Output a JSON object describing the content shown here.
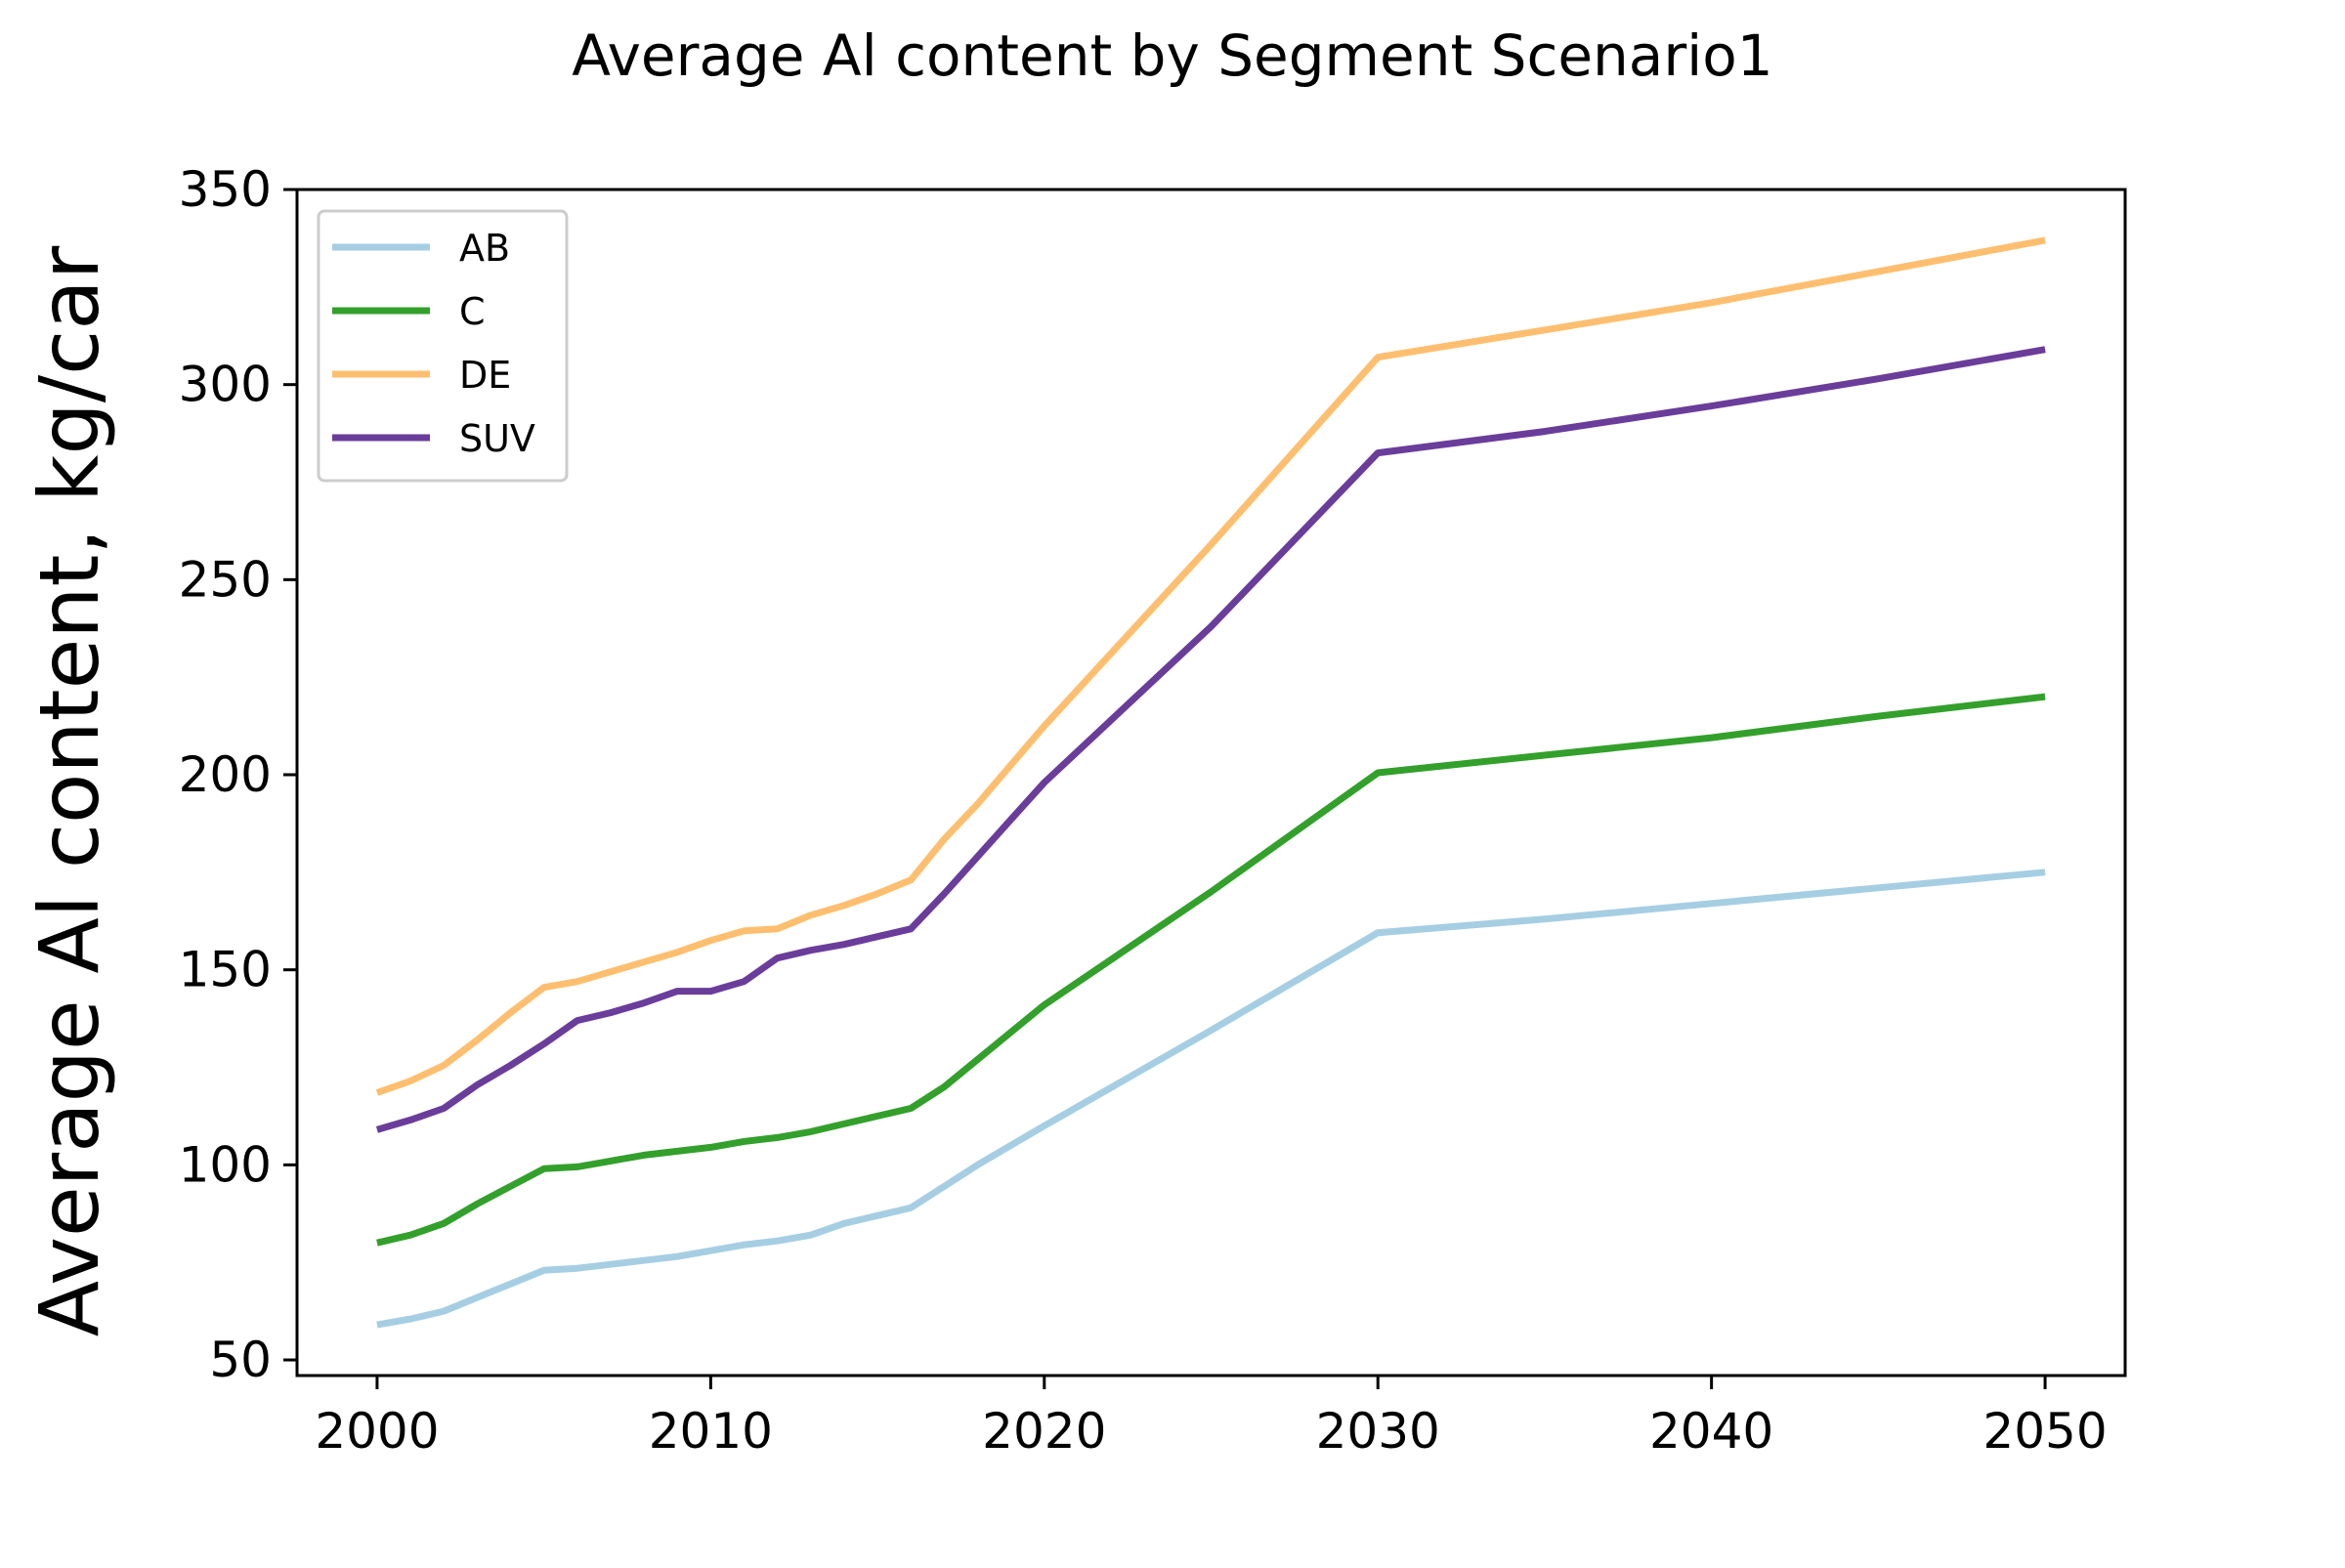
{
  "chart_data": {
    "type": "line",
    "title": "Average Al content by Segment Scenario1",
    "xlabel": "",
    "ylabel": "Average Al content, kg/car",
    "xlim": [
      1997.6,
      2052.4
    ],
    "ylim": [
      46,
      350
    ],
    "xticks": [
      2000,
      2010,
      2020,
      2030,
      2040,
      2050
    ],
    "yticks": [
      50,
      100,
      150,
      200,
      250,
      300,
      350
    ],
    "grid": false,
    "legend_position": "top-left",
    "x": [
      2000,
      2001,
      2002,
      2003,
      2004,
      2005,
      2006,
      2007,
      2008,
      2009,
      2010,
      2011,
      2012,
      2013,
      2014,
      2015,
      2016,
      2017,
      2018,
      2019,
      2020,
      2025,
      2030,
      2035,
      2040,
      2045,
      2050
    ],
    "series": [
      {
        "name": "AB",
        "color": "#a6cee3",
        "values": [
          59,
          60.5,
          62.5,
          66,
          69.5,
          73,
          73.5,
          74.5,
          75.5,
          76.5,
          78,
          79.5,
          80.5,
          82,
          85,
          87,
          89,
          94.5,
          100,
          105,
          110,
          134.5,
          159.5,
          163,
          167,
          171,
          175
        ]
      },
      {
        "name": "C",
        "color": "#33a02c",
        "values": [
          80,
          82,
          85,
          90,
          94.5,
          99,
          99.5,
          101,
          102.5,
          103.5,
          104.5,
          106,
          107,
          108.5,
          110.5,
          112.5,
          114.5,
          120,
          127,
          134,
          141,
          170,
          200.5,
          205,
          209.5,
          215,
          220
        ]
      },
      {
        "name": "DE",
        "color": "#fdbf6f",
        "values": [
          118.5,
          121.5,
          125.5,
          132,
          139,
          145.5,
          147,
          149.5,
          152,
          154.5,
          157.5,
          160,
          160.5,
          164,
          166.5,
          169.5,
          173,
          183.5,
          192.5,
          202.5,
          212.5,
          259,
          307,
          314,
          321,
          329,
          337
        ]
      },
      {
        "name": "SUV",
        "color": "#6a3d9a",
        "values": [
          109,
          111.5,
          114.5,
          120.5,
          125.5,
          131,
          137,
          139,
          141.5,
          144.5,
          144.5,
          147,
          153,
          155,
          156.5,
          158.5,
          160.5,
          169.5,
          179,
          188.5,
          198,
          238,
          282.5,
          288,
          294.5,
          301.5,
          309
        ]
      }
    ]
  }
}
